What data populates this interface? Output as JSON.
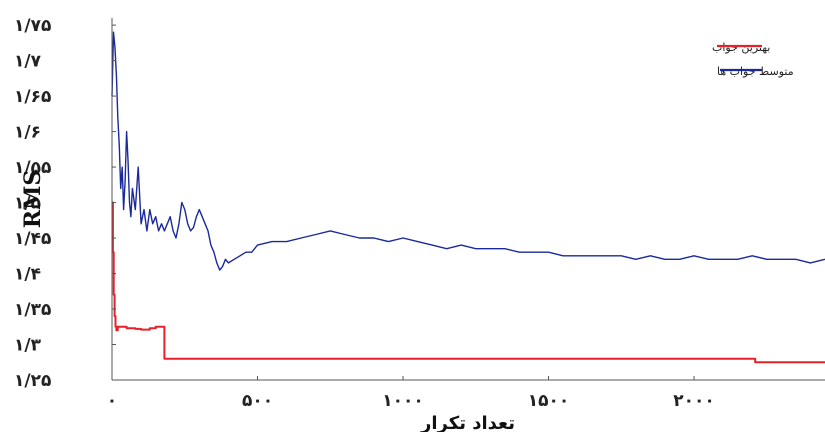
{
  "chart_data": {
    "type": "line",
    "title": "",
    "xlabel": "تعداد تکرار",
    "ylabel": "RMS",
    "xlim": [
      0,
      2450
    ],
    "ylim": [
      1.25,
      1.76
    ],
    "x_ticks": [
      {
        "value": 0,
        "label": "۰"
      },
      {
        "value": 500,
        "label": "۵۰۰"
      },
      {
        "value": 1000,
        "label": "۱۰۰۰"
      },
      {
        "value": 1500,
        "label": "۱۵۰۰"
      },
      {
        "value": 2000,
        "label": "۲۰۰۰"
      }
    ],
    "y_ticks": [
      {
        "value": 1.25,
        "label": "۱/۲۵"
      },
      {
        "value": 1.3,
        "label": "۱/۳"
      },
      {
        "value": 1.35,
        "label": "۱/۳۵"
      },
      {
        "value": 1.4,
        "label": "۱/۴"
      },
      {
        "value": 1.45,
        "label": "۱/۴۵"
      },
      {
        "value": 1.5,
        "label": "۱/۵"
      },
      {
        "value": 1.55,
        "label": "۱/۵۵"
      },
      {
        "value": 1.6,
        "label": "۱/۶"
      },
      {
        "value": 1.65,
        "label": "۱/۶۵"
      },
      {
        "value": 1.7,
        "label": "۱/۷"
      },
      {
        "value": 1.75,
        "label": "۱/۷۵"
      }
    ],
    "legend_position": "top-right",
    "grid": false,
    "series": [
      {
        "name": "بهترین جواب",
        "color": "#e8202a",
        "step": true,
        "x": [
          0,
          3,
          6,
          9,
          12,
          15,
          20,
          50,
          80,
          100,
          130,
          150,
          170,
          180,
          200,
          2200,
          2210,
          2450
        ],
        "y": [
          1.5,
          1.43,
          1.37,
          1.34,
          1.325,
          1.32,
          1.325,
          1.323,
          1.322,
          1.321,
          1.323,
          1.325,
          1.325,
          1.28,
          1.28,
          1.28,
          1.275,
          1.275
        ]
      },
      {
        "name": "متوسط جواب ها",
        "color": "#1a2a9c",
        "step": false,
        "x": [
          0,
          5,
          10,
          15,
          20,
          25,
          30,
          35,
          40,
          45,
          50,
          55,
          60,
          65,
          70,
          80,
          90,
          100,
          110,
          120,
          130,
          140,
          150,
          160,
          170,
          180,
          190,
          200,
          210,
          220,
          230,
          240,
          250,
          260,
          270,
          280,
          290,
          300,
          310,
          320,
          330,
          340,
          350,
          360,
          370,
          380,
          390,
          400,
          420,
          440,
          460,
          480,
          500,
          550,
          600,
          650,
          700,
          750,
          800,
          850,
          900,
          950,
          1000,
          1050,
          1100,
          1150,
          1200,
          1250,
          1300,
          1350,
          1400,
          1450,
          1500,
          1550,
          1600,
          1650,
          1700,
          1750,
          1800,
          1850,
          1900,
          1950,
          2000,
          2050,
          2100,
          2150,
          2200,
          2250,
          2300,
          2350,
          2400,
          2450
        ],
        "y": [
          1.65,
          1.74,
          1.72,
          1.68,
          1.62,
          1.58,
          1.52,
          1.55,
          1.49,
          1.53,
          1.6,
          1.56,
          1.5,
          1.48,
          1.52,
          1.49,
          1.55,
          1.47,
          1.49,
          1.46,
          1.49,
          1.47,
          1.48,
          1.46,
          1.47,
          1.46,
          1.47,
          1.48,
          1.46,
          1.45,
          1.47,
          1.5,
          1.49,
          1.47,
          1.46,
          1.465,
          1.48,
          1.49,
          1.48,
          1.47,
          1.46,
          1.44,
          1.43,
          1.415,
          1.405,
          1.41,
          1.42,
          1.415,
          1.42,
          1.425,
          1.43,
          1.43,
          1.44,
          1.445,
          1.445,
          1.45,
          1.455,
          1.46,
          1.455,
          1.45,
          1.45,
          1.445,
          1.45,
          1.445,
          1.44,
          1.435,
          1.44,
          1.435,
          1.435,
          1.435,
          1.43,
          1.43,
          1.43,
          1.425,
          1.425,
          1.425,
          1.425,
          1.425,
          1.42,
          1.425,
          1.42,
          1.42,
          1.425,
          1.42,
          1.42,
          1.42,
          1.425,
          1.42,
          1.42,
          1.42,
          1.415,
          1.42
        ]
      }
    ]
  }
}
